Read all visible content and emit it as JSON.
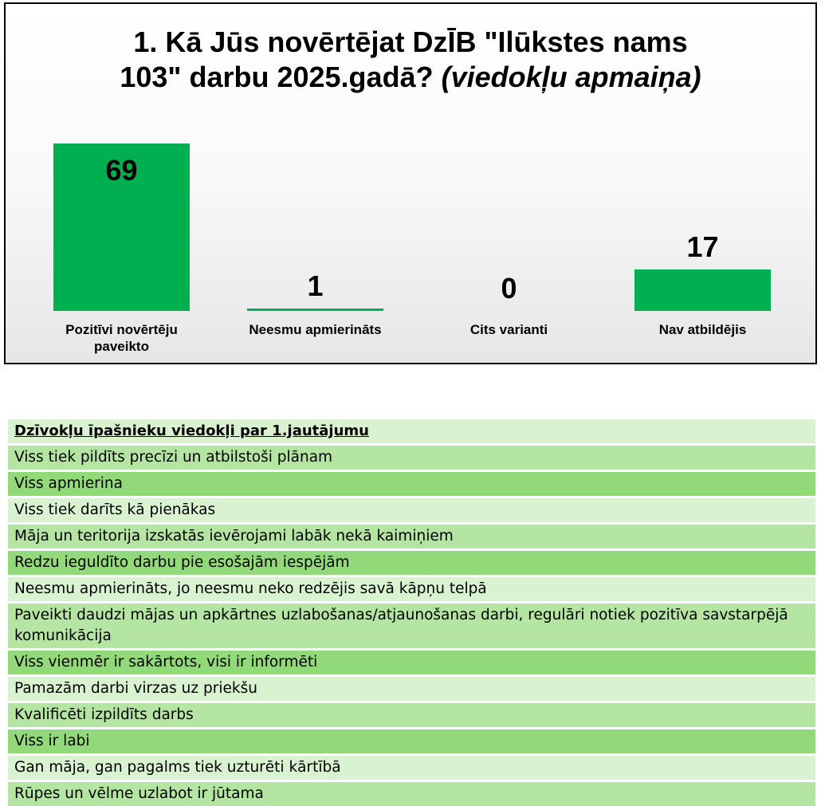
{
  "chart_data": {
    "type": "bar",
    "title_line1": "1. Kā Jūs novērtējat DzĪB \"Ilūkstes nams",
    "title_line2": "103\" darbu 2025.gadā?",
    "title_italic": "(viedokļu apmaiņa)",
    "categories": [
      "Pozitīvi novērtēju paveikto",
      "Neesmu apmierināts",
      "Cits varianti",
      "Nav atbildējis"
    ],
    "values": [
      69,
      1,
      0,
      17
    ],
    "value_labels": [
      "69",
      "1",
      "0",
      "17"
    ],
    "bar_color": "#00b050",
    "ylim": [
      0,
      70
    ],
    "grid": false,
    "legend": "none"
  },
  "opinions": {
    "header": "Dzīvokļu īpašnieku viedokļi par 1.jautājumu",
    "rows": [
      "Viss tiek pildīts precīzi un atbilstoši plānam",
      "Viss apmierina",
      "Viss tiek darīts kā pienākas",
      "Māja un teritorija izskatās ievērojami labāk nekā kaimiņiem",
      "Redzu ieguldīto darbu pie esošajām iespējām",
      "Neesmu apmierināts, jo neesmu neko redzējis savā kāpņu telpā",
      "Paveikti daudzi mājas un apkārtnes uzlabošanas/atjaunošanas darbi, regulāri notiek pozitīva savstarpējā komunikācija",
      "Viss vienmēr ir sakārtots, visi ir informēti",
      "Pamazām darbi virzas uz priekšu",
      "Kvalificēti izpildīts darbs",
      "Viss ir labi",
      "Gan māja, gan pagalms tiek uzturēti kārtībā",
      "Rūpes un vēlme uzlabot ir jūtama"
    ],
    "header_color": "#d9f2d0",
    "row_colors": [
      "#b4e5a2",
      "#92d979",
      "#d9f2d0"
    ]
  }
}
